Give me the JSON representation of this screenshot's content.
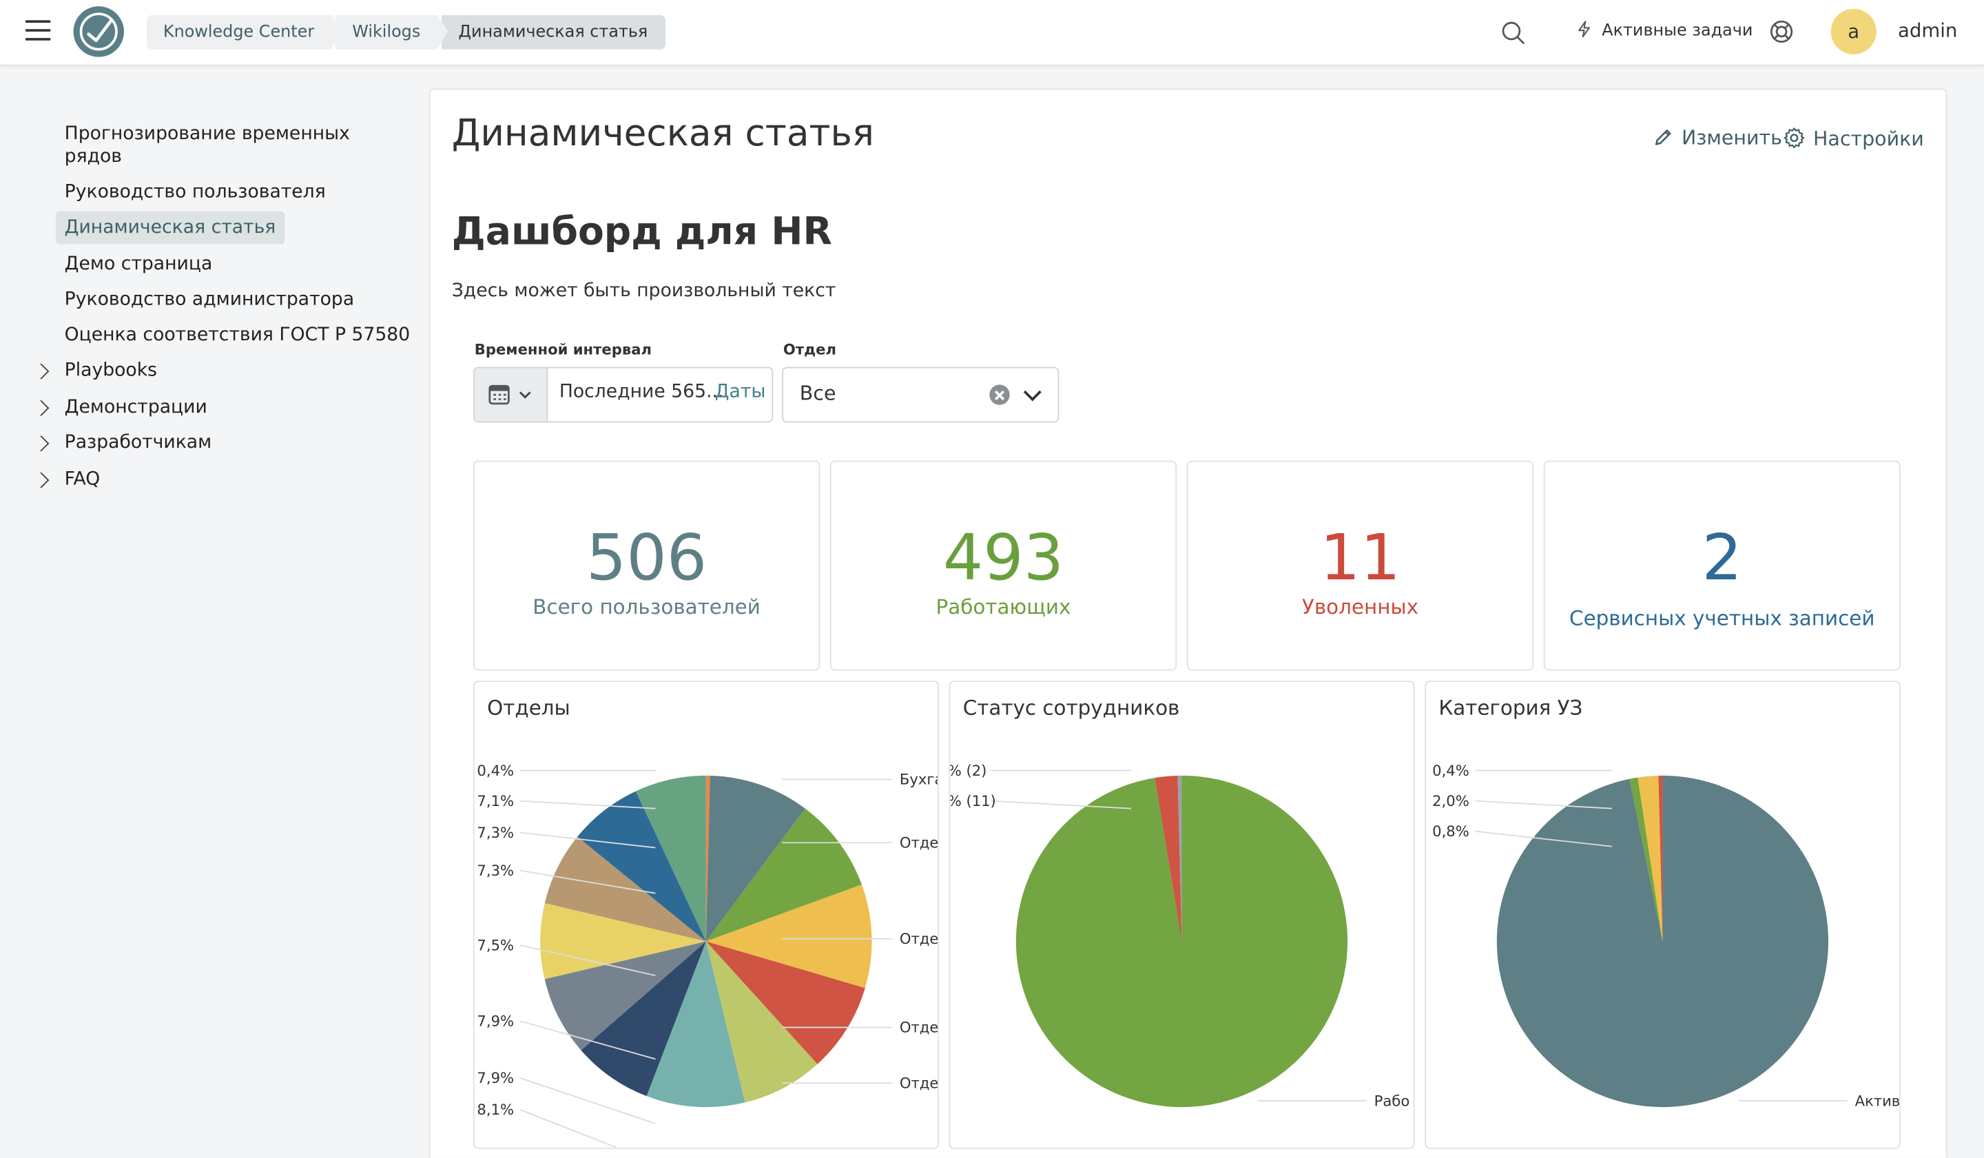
{
  "breadcrumb": [
    "Knowledge Center",
    "Wikilogs",
    "Динамическая статья"
  ],
  "header": {
    "active_tasks": "Активные задачи",
    "avatar_letter": "a",
    "username": "admin"
  },
  "sidebar": {
    "items": [
      {
        "label": "Прогнозирование временных"
      },
      {
        "label": "рядов"
      },
      {
        "label": "Руководство пользователя"
      },
      {
        "label": "Динамическая статья"
      },
      {
        "label": "Демо страница"
      },
      {
        "label": "Руководство администратора"
      },
      {
        "label": "Оценка соответствия ГОСТ Р 57580"
      },
      {
        "label": "Playbooks"
      },
      {
        "label": "Демонстрации"
      },
      {
        "label": "Разработчикам"
      },
      {
        "label": "FAQ"
      }
    ]
  },
  "page": {
    "title": "Динамическая статья",
    "edit": "Изменить",
    "settings": "Настройки",
    "heading": "Дашборд для HR",
    "description": "Здесь может быть произвольный текст"
  },
  "filters": {
    "time_label": "Временной интервал",
    "time_value": "Последние 565...",
    "time_dates": "Даты",
    "dept_label": "Отдел",
    "dept_value": "Все"
  },
  "kpis": [
    {
      "value": "506",
      "label": "Всего пользователей",
      "color": "#5f7f86"
    },
    {
      "value": "493",
      "label": "Работающих",
      "color": "#6a9f3e"
    },
    {
      "value": "11",
      "label": "Уволенных",
      "color": "#cc4a3c"
    },
    {
      "value": "2",
      "label": "Сервисных учетных записей",
      "color": "#2e6a96"
    }
  ],
  "chart_data": [
    {
      "type": "pie",
      "title": "Отделы",
      "left_labels": [
        "0,4%",
        "7,1%",
        "7,3%",
        "7,3%",
        "7,5%",
        "7,9%",
        "7,9%",
        "8,1%"
      ],
      "right_labels": [
        "Бухга",
        "Отде",
        "Отде",
        "Отде",
        "Отде"
      ],
      "values": [
        0.4,
        10.0,
        9.4,
        10.3,
        8.9,
        8.1,
        9.8,
        7.9,
        7.9,
        7.5,
        7.3,
        7.3,
        7.1
      ],
      "colors": [
        "#e8894a",
        "#5f7f86",
        "#73a542",
        "#eebe4f",
        "#cf5443",
        "#bcc86a",
        "#76b1ae",
        "#2f4a6b",
        "#76838f",
        "#e8d266",
        "#b89870",
        "#2e6a96",
        "#67a381"
      ]
    },
    {
      "type": "pie",
      "title": "Статус сотрудников",
      "left_labels": [
        "% (2)",
        "% (11)"
      ],
      "right_labels": [
        "Рабо"
      ],
      "values": [
        97.4,
        2.2,
        0.4
      ],
      "colors": [
        "#73a542",
        "#cf5443",
        "#9aa3a8"
      ]
    },
    {
      "type": "pie",
      "title": "Категория УЗ",
      "left_labels": [
        "0,4%",
        "2,0%",
        "0,8%"
      ],
      "right_labels": [
        "Актив"
      ],
      "values": [
        96.8,
        0.8,
        2.0,
        0.4
      ],
      "colors": [
        "#5f7f86",
        "#73a542",
        "#eebe4f",
        "#cf5443"
      ]
    }
  ]
}
